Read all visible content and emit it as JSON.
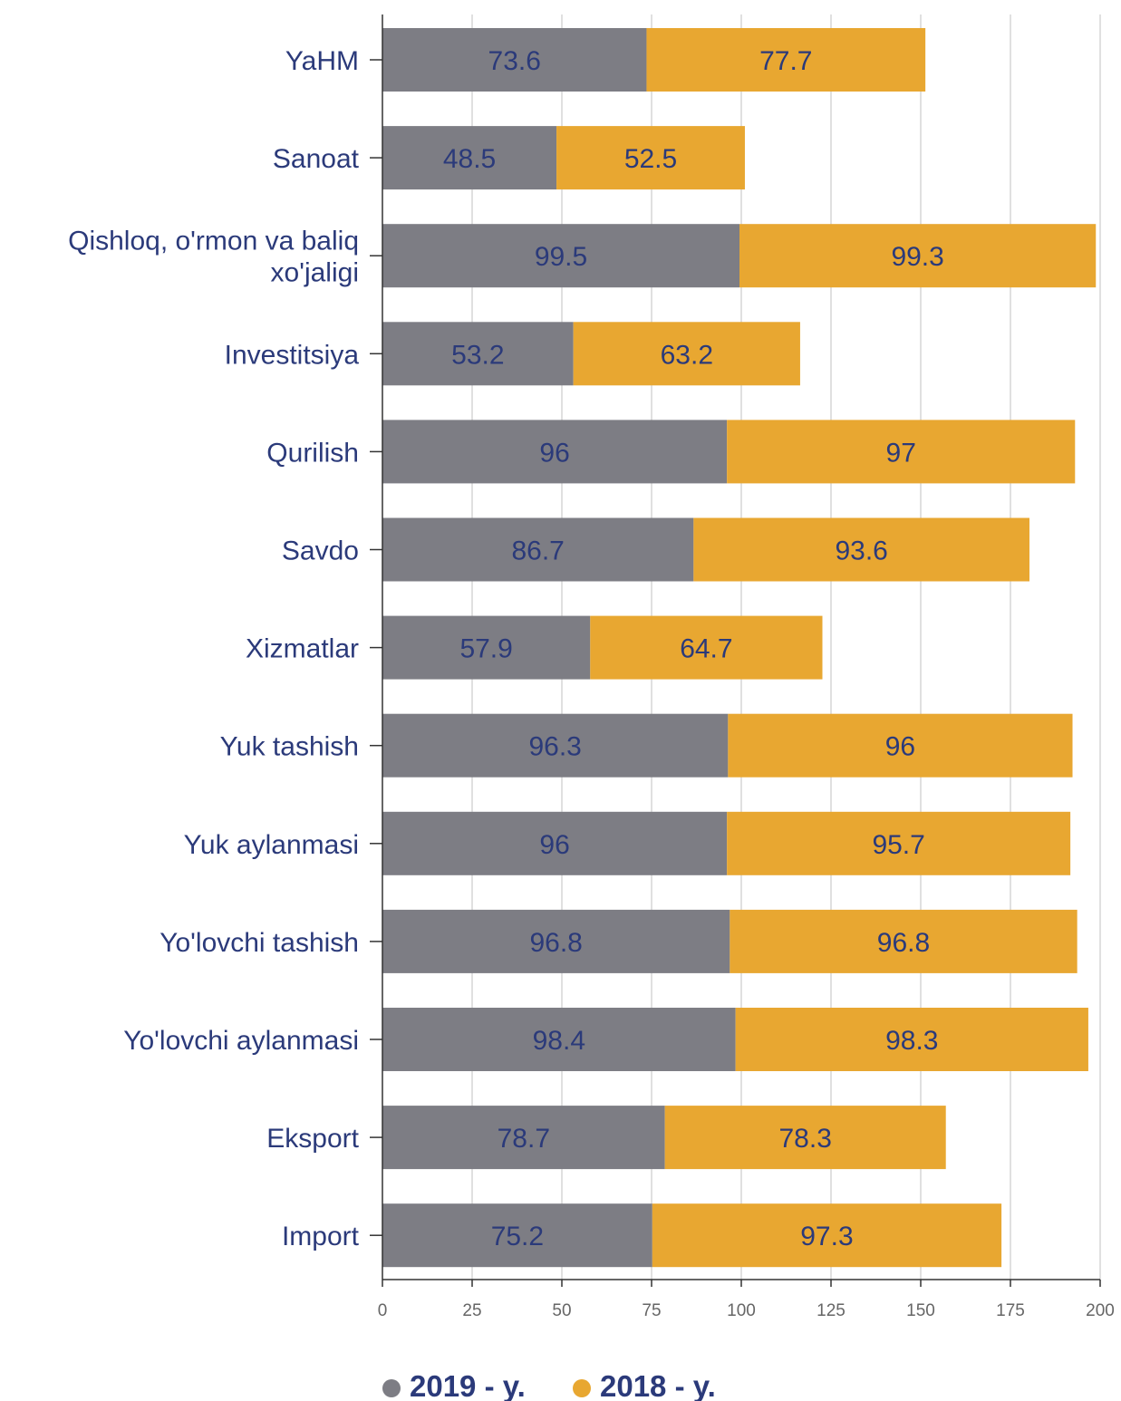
{
  "chart_data": {
    "type": "bar",
    "orientation": "horizontal",
    "stacked": true,
    "categories": [
      "YaHM",
      "Sanoat",
      "Qishloq, o'rmon va baliq xo'jaligi",
      "Investitsiya",
      "Qurilish",
      "Savdo",
      "Xizmatlar",
      "Yuk tashish",
      "Yuk aylanmasi",
      "Yo'lovchi tashish",
      "Yo'lovchi aylanmasi",
      "Eksport",
      "Import"
    ],
    "category_lines": [
      [
        "YaHM"
      ],
      [
        "Sanoat"
      ],
      [
        "Qishloq, o'rmon va baliq",
        "xo'jaligi"
      ],
      [
        "Investitsiya"
      ],
      [
        "Qurilish"
      ],
      [
        "Savdo"
      ],
      [
        "Xizmatlar"
      ],
      [
        "Yuk tashish"
      ],
      [
        "Yuk aylanmasi"
      ],
      [
        "Yo'lovchi tashish"
      ],
      [
        "Yo'lovchi aylanmasi"
      ],
      [
        "Eksport"
      ],
      [
        "Import"
      ]
    ],
    "series": [
      {
        "name": "2019 - y.",
        "color": "#7d7d84",
        "values": [
          73.6,
          48.5,
          99.5,
          53.2,
          96,
          86.7,
          57.9,
          96.3,
          96,
          96.8,
          98.4,
          78.7,
          75.2
        ]
      },
      {
        "name": "2018 - y.",
        "color": "#e8a731",
        "values": [
          77.7,
          52.5,
          99.3,
          63.2,
          97,
          93.6,
          64.7,
          96,
          95.7,
          96.8,
          98.3,
          78.3,
          97.3
        ]
      }
    ],
    "xlim": [
      0,
      200
    ],
    "ticks": [
      0,
      25,
      50,
      75,
      100,
      125,
      150,
      175,
      200
    ],
    "grid": true,
    "legend_position": "bottom"
  }
}
